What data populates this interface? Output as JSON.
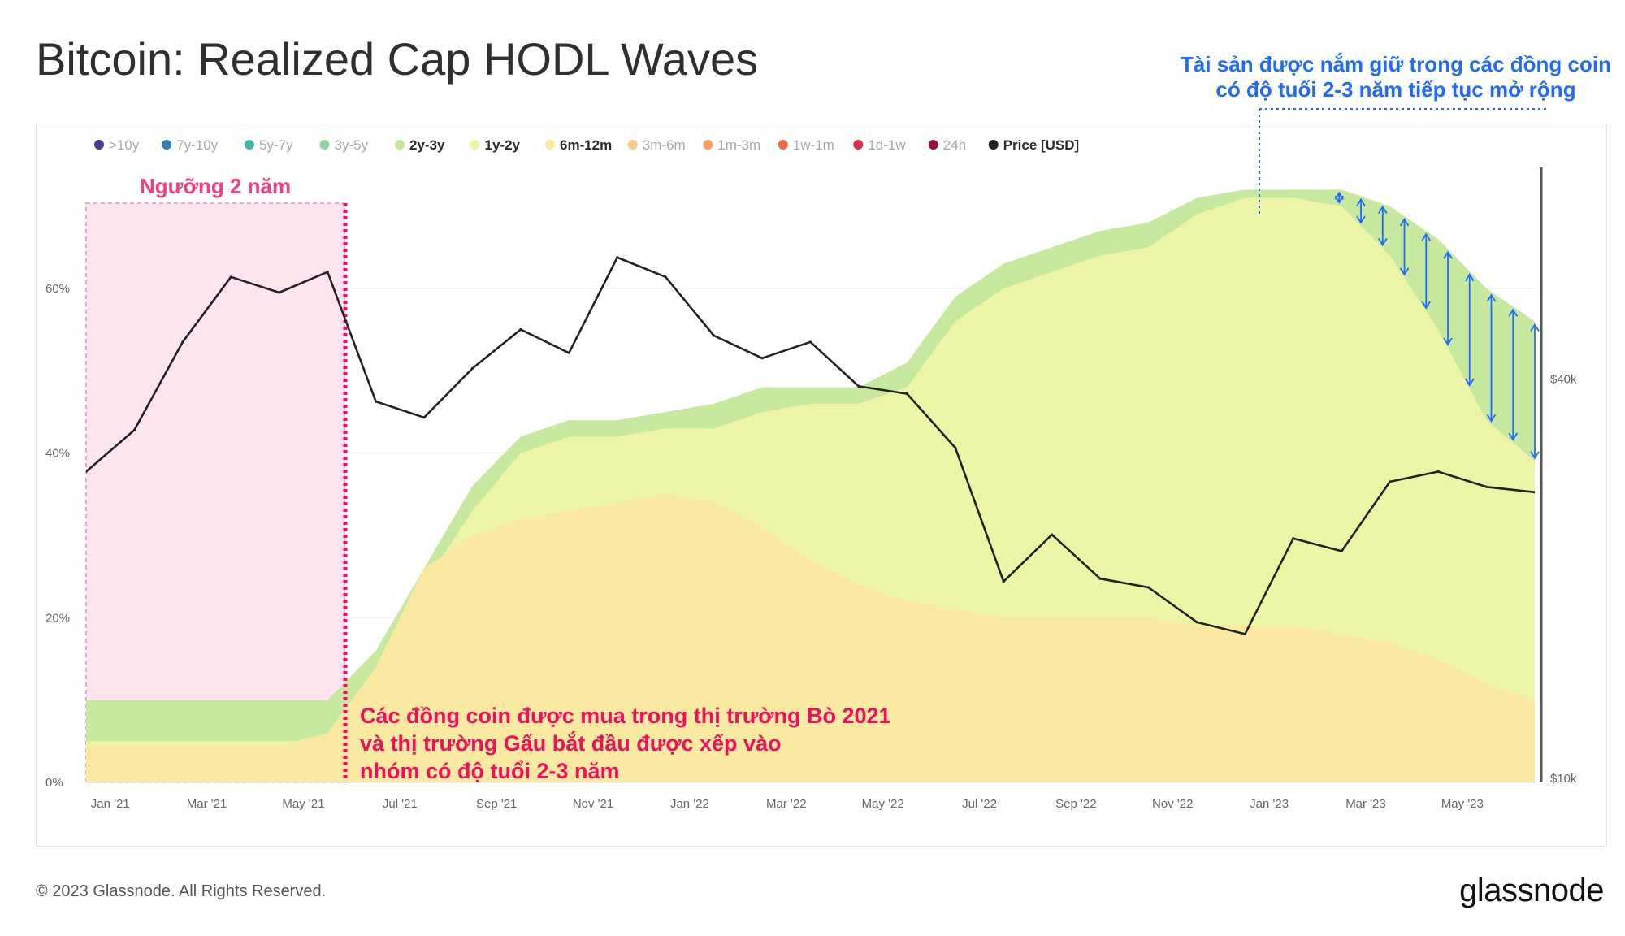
{
  "title": "Bitcoin: Realized Cap HODL Waves",
  "copyright": "© 2023 Glassnode. All Rights Reserved.",
  "brand": "glassnode",
  "watermark": "glassnode",
  "annotations": {
    "threshold": "Ngưỡng 2 năm",
    "bull_bear_note": [
      "Các đồng coin được mua trong thị trường  Bò 2021",
      "và thị trường Gấu bắt đầu được xếp vào",
      "nhóm có độ tuổi 2-3 năm"
    ],
    "holdings_note": [
      "Tài sản được nắm giữ trong các đồng coin",
      "có độ tuổi 2-3 năm tiếp tục mở rộng"
    ]
  },
  "chart_data": {
    "type": "area",
    "legend_position": "top-left",
    "legend": [
      {
        "label": ">10y",
        "color": "#4a3b8f",
        "active": false
      },
      {
        "label": "7y-10y",
        "color": "#2f7fbf",
        "active": false
      },
      {
        "label": "5y-7y",
        "color": "#3fb6a8",
        "active": false
      },
      {
        "label": "3y-5y",
        "color": "#8fd49a",
        "active": false
      },
      {
        "label": "2y-3y",
        "color": "#c4e89a",
        "active": true
      },
      {
        "label": "1y-2y",
        "color": "#eef5a6",
        "active": true
      },
      {
        "label": "6m-12m",
        "color": "#fbe9a0",
        "active": true
      },
      {
        "label": "3m-6m",
        "color": "#fbc987",
        "active": false
      },
      {
        "label": "1m-3m",
        "color": "#f9a060",
        "active": false
      },
      {
        "label": "1w-1m",
        "color": "#f06a45",
        "active": false
      },
      {
        "label": "1d-1w",
        "color": "#d9304a",
        "active": false
      },
      {
        "label": "24h",
        "color": "#9c0f44",
        "active": false
      },
      {
        "label": "Price [USD]",
        "color": "#222222",
        "active": true
      }
    ],
    "x_ticks": [
      "Jan '21",
      "Mar '21",
      "May '21",
      "Jul '21",
      "Sep '21",
      "Nov '21",
      "Jan '22",
      "Mar '22",
      "May '22",
      "Jul '22",
      "Sep '22",
      "Nov '22",
      "Jan '23",
      "Mar '23",
      "May '23"
    ],
    "y_left_ticks": [
      "0%",
      "20%",
      "40%",
      "60%"
    ],
    "y_left_range": [
      0,
      75
    ],
    "y_right_ticks": [
      "$10k",
      "$40k"
    ],
    "y_right_scale": "log",
    "x_months": [
      0,
      1,
      2,
      3,
      4,
      5,
      6,
      7,
      8,
      9,
      10,
      11,
      12,
      13,
      14,
      15,
      16,
      17,
      18,
      19,
      20,
      21,
      22,
      23,
      24,
      25,
      26,
      27,
      28,
      29,
      30
    ],
    "series": [
      {
        "name": "6m-12m",
        "color": "#fbe9a0",
        "values": [
          4.5,
          4.5,
          4.5,
          4.5,
          4.5,
          6,
          14,
          26,
          30,
          32,
          33,
          34,
          35,
          34,
          31,
          27,
          24,
          22,
          21,
          20,
          20,
          20,
          20,
          19,
          19,
          19,
          18,
          17,
          15,
          12,
          10
        ]
      },
      {
        "name": "1y-2y",
        "color": "#eef5a6",
        "values": [
          5,
          5,
          5,
          5,
          5,
          5,
          13,
          24,
          33,
          40,
          42,
          42,
          43,
          43,
          45,
          46,
          46,
          48,
          56,
          60,
          62,
          64,
          65,
          69,
          71,
          71,
          70,
          64,
          55,
          44,
          39
        ]
      },
      {
        "name": "2y-3y",
        "color": "#c4e89a",
        "values": [
          10,
          10,
          10,
          10,
          10,
          10,
          16,
          26,
          36,
          42,
          44,
          44,
          45,
          46,
          48,
          48,
          48,
          51,
          59,
          63,
          65,
          67,
          68,
          71,
          72,
          72,
          72,
          70,
          66,
          60,
          56
        ]
      },
      {
        "name": "Price [USD]",
        "color": "#222222",
        "values": [
          29000,
          33500,
          45500,
          57000,
          54000,
          58000,
          37000,
          35000,
          41500,
          47500,
          43800,
          61000,
          57000,
          46500,
          43000,
          45500,
          39000,
          38000,
          31500,
          19800,
          23300,
          20000,
          19400,
          17200,
          16500,
          23000,
          22000,
          28000,
          29000,
          27500,
          27000
        ]
      }
    ]
  }
}
